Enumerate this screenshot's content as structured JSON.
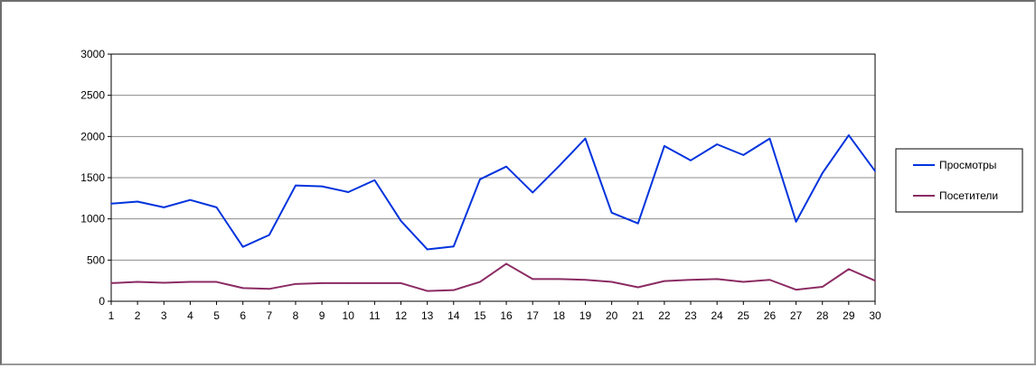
{
  "chart_data": {
    "type": "line",
    "title": "",
    "xlabel": "",
    "ylabel": "",
    "x": [
      1,
      2,
      3,
      4,
      5,
      6,
      7,
      8,
      9,
      10,
      11,
      12,
      13,
      14,
      15,
      16,
      17,
      18,
      19,
      20,
      21,
      22,
      23,
      24,
      25,
      26,
      27,
      28,
      29,
      30
    ],
    "ylim": [
      0,
      3000
    ],
    "yticks": [
      0,
      500,
      1000,
      1500,
      2000,
      2500,
      3000
    ],
    "grid": "horizontal",
    "legend_position": "right",
    "series": [
      {
        "name": "Просмотры",
        "color": "#0033dd",
        "values": [
          1185,
          1210,
          1140,
          1230,
          1140,
          660,
          805,
          1405,
          1395,
          1325,
          1470,
          975,
          630,
          665,
          1480,
          1635,
          1320,
          1640,
          1975,
          1075,
          945,
          1885,
          1710,
          1905,
          1775,
          1975,
          965,
          1555,
          2015,
          1580
        ]
      },
      {
        "name": "Посетители",
        "color": "#8b2b63",
        "values": [
          220,
          235,
          225,
          235,
          235,
          160,
          150,
          210,
          220,
          220,
          220,
          220,
          125,
          135,
          235,
          455,
          270,
          270,
          260,
          235,
          170,
          245,
          260,
          270,
          235,
          260,
          140,
          175,
          390,
          250
        ]
      }
    ]
  }
}
